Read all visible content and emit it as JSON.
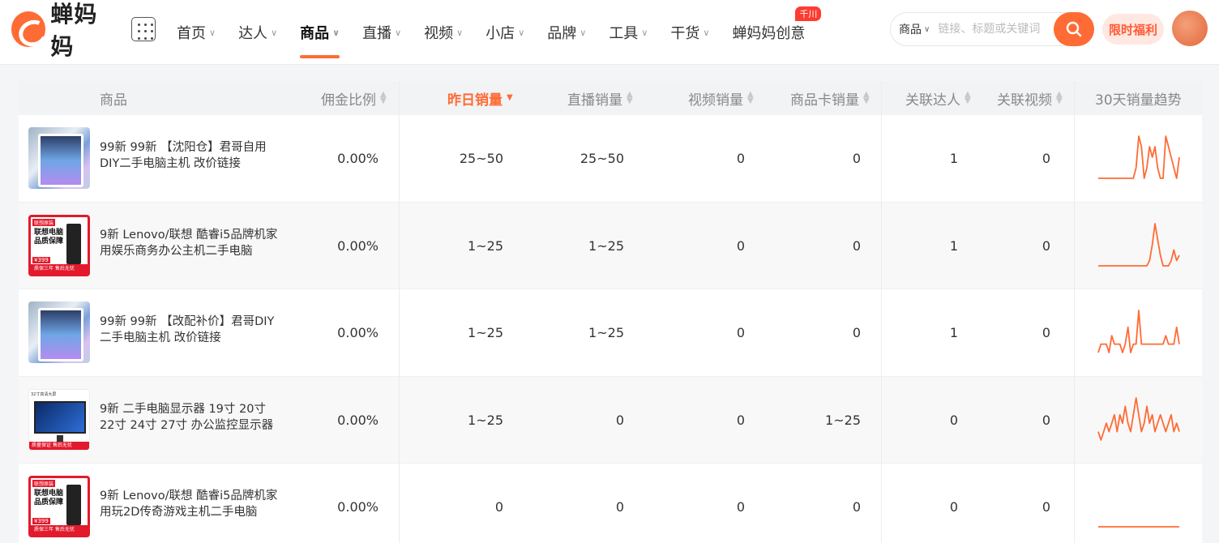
{
  "brand": {
    "logo_text": "蝉妈妈"
  },
  "nav": {
    "items": [
      {
        "label": "首页",
        "chevron": true,
        "active": false
      },
      {
        "label": "达人",
        "chevron": true,
        "active": false
      },
      {
        "label": "商品",
        "chevron": true,
        "active": true
      },
      {
        "label": "直播",
        "chevron": true,
        "active": false
      },
      {
        "label": "视频",
        "chevron": true,
        "active": false
      },
      {
        "label": "小店",
        "chevron": true,
        "active": false
      },
      {
        "label": "品牌",
        "chevron": true,
        "active": false
      },
      {
        "label": "工具",
        "chevron": true,
        "active": false
      },
      {
        "label": "干货",
        "chevron": true,
        "active": false
      },
      {
        "label": "蝉妈妈创意",
        "chevron": false,
        "active": false,
        "badge": "千川"
      }
    ]
  },
  "search": {
    "type_label": "商品",
    "placeholder": "链接、标题或关键词"
  },
  "promo_label": "限时福利",
  "colors": {
    "accent": "#ff6b35",
    "badge": "#ff3b30"
  },
  "table": {
    "columns": {
      "product": "商品",
      "commission": "佣金比例",
      "yesterday_sales": "昨日销量",
      "live_sales": "直播销量",
      "video_sales": "视频销量",
      "card_sales": "商品卡销量",
      "related_creators": "关联达人",
      "related_videos": "关联视频",
      "trend": "30天销量趋势"
    },
    "sorted_column": "yesterday_sales",
    "rows": [
      {
        "thumb": "pc",
        "name": "99新 99新 【沈阳仓】君哥自用DIY二手电脑主机 改价链接",
        "commission": "0.00%",
        "yesterday": "25~50",
        "live": "25~50",
        "video": "0",
        "card": "0",
        "creators": "1",
        "videos": "0",
        "trend": [
          0,
          0,
          0,
          0,
          0,
          0,
          0,
          0,
          0,
          0,
          0,
          0,
          0,
          0,
          1,
          4,
          3,
          0,
          1,
          3,
          2,
          3,
          1,
          0,
          0,
          4,
          3,
          2,
          1,
          0,
          2
        ]
      },
      {
        "thumb": "lenovo",
        "thumb_tag": "联想原装",
        "thumb_title": "联想电脑品质保障",
        "thumb_price": "¥399",
        "thumb_foot": "质保三年 售后无忧",
        "name": "9新 Lenovo/联想 酷睿i5品牌机家用娱乐商务办公主机二手电脑",
        "commission": "0.00%",
        "yesterday": "1~25",
        "live": "1~25",
        "video": "0",
        "card": "0",
        "creators": "1",
        "videos": "0",
        "trend": [
          0,
          0,
          0,
          0,
          0,
          0,
          0,
          0,
          0,
          0,
          0,
          0,
          0,
          0,
          0,
          0,
          0,
          0,
          0,
          1,
          4,
          8,
          5,
          2,
          0,
          0,
          0,
          1,
          3,
          1,
          2
        ]
      },
      {
        "thumb": "pc",
        "name": "99新 99新 【改配补价】君哥DIY二手电脑主机 改价链接",
        "commission": "0.00%",
        "yesterday": "1~25",
        "live": "1~25",
        "video": "0",
        "card": "0",
        "creators": "1",
        "videos": "0",
        "trend": [
          0,
          1,
          1,
          1,
          0,
          2,
          1,
          1,
          1,
          0,
          1,
          3,
          0,
          1,
          1,
          5,
          1,
          1,
          1,
          1,
          1,
          1,
          1,
          1,
          1,
          2,
          1,
          1,
          1,
          3,
          1
        ]
      },
      {
        "thumb": "monitor",
        "thumb_top": "32寸高清大屏",
        "thumb_foot": "质量保证 售后无忧",
        "name": "9新 二手电脑显示器 19寸 20寸 22寸 24寸 27寸 办公监控显示器",
        "commission": "0.00%",
        "yesterday": "1~25",
        "live": "0",
        "video": "0",
        "card": "1~25",
        "creators": "0",
        "videos": "0",
        "trend": [
          1,
          0,
          1,
          2,
          1,
          2,
          3,
          1,
          3,
          2,
          4,
          2,
          1,
          3,
          5,
          3,
          1,
          2,
          4,
          2,
          3,
          1,
          2,
          3,
          2,
          1,
          2,
          3,
          1,
          2,
          1
        ]
      },
      {
        "thumb": "lenovo",
        "thumb_tag": "联想原装",
        "thumb_title": "联想电脑品质保障",
        "thumb_price": "¥399",
        "thumb_foot": "质保三年 售后无忧",
        "name": "9新 Lenovo/联想 酷睿i5品牌机家用玩2D传奇游戏主机二手电脑",
        "commission": "0.00%",
        "yesterday": "0",
        "live": "0",
        "video": "0",
        "card": "0",
        "creators": "0",
        "videos": "0",
        "trend": [
          0,
          0,
          0,
          0,
          0,
          0,
          0,
          0,
          0,
          0,
          0,
          0,
          0,
          0,
          0,
          0,
          0,
          0,
          0,
          0,
          0,
          0,
          0,
          0,
          0,
          0,
          0,
          0,
          0,
          0,
          0
        ]
      }
    ]
  }
}
